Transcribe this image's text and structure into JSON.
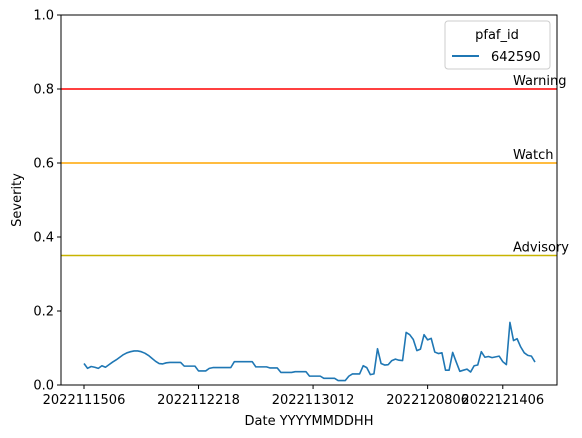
{
  "chart_data": {
    "type": "line",
    "title": "",
    "xlabel": "Date YYYYMMDDHH",
    "ylabel": "Severity",
    "ylim": [
      0,
      1.0
    ],
    "grid": false,
    "legend": {
      "title": "pfaf_id",
      "placement": "top-right",
      "entries": [
        "642590"
      ]
    },
    "x_ticks": [
      "2022111506",
      "2022112218",
      "2022113012",
      "2022120806",
      "2022121406"
    ],
    "y_ticks": [
      "0.0",
      "0.2",
      "0.4",
      "0.6",
      "0.8",
      "1.0"
    ],
    "y_tick_values": [
      0,
      0.2,
      0.4,
      0.6,
      0.8,
      1.0
    ],
    "thresholds": [
      {
        "label": "Warning",
        "value": 0.8,
        "color": "#ff0000"
      },
      {
        "label": "Watch",
        "value": 0.6,
        "color": "#ffa500"
      },
      {
        "label": "Advisory",
        "value": 0.35,
        "color": "#c8b400"
      }
    ],
    "series": [
      {
        "name": "642590",
        "color": "#1f77b4",
        "values": [
          0.058,
          0.045,
          0.05,
          0.048,
          0.045,
          0.052,
          0.048,
          0.055,
          0.062,
          0.068,
          0.075,
          0.082,
          0.087,
          0.09,
          0.092,
          0.092,
          0.09,
          0.086,
          0.08,
          0.072,
          0.064,
          0.058,
          0.057,
          0.06,
          0.061,
          0.061,
          0.061,
          0.061,
          0.051,
          0.051,
          0.051,
          0.051,
          0.038,
          0.038,
          0.038,
          0.045,
          0.047,
          0.047,
          0.047,
          0.047,
          0.047,
          0.047,
          0.063,
          0.063,
          0.063,
          0.063,
          0.063,
          0.063,
          0.049,
          0.049,
          0.049,
          0.049,
          0.046,
          0.046,
          0.046,
          0.034,
          0.034,
          0.034,
          0.034,
          0.036,
          0.036,
          0.036,
          0.036,
          0.024,
          0.024,
          0.024,
          0.024,
          0.018,
          0.018,
          0.018,
          0.018,
          0.012,
          0.012,
          0.012,
          0.024,
          0.03,
          0.03,
          0.03,
          0.052,
          0.047,
          0.028,
          0.03,
          0.098,
          0.058,
          0.054,
          0.055,
          0.066,
          0.07,
          0.067,
          0.066,
          0.142,
          0.136,
          0.123,
          0.093,
          0.097,
          0.136,
          0.122,
          0.126,
          0.089,
          0.085,
          0.087,
          0.04,
          0.04,
          0.088,
          0.062,
          0.037,
          0.04,
          0.043,
          0.035,
          0.052,
          0.054,
          0.09,
          0.075,
          0.077,
          0.074,
          0.076,
          0.078,
          0.063,
          0.055,
          0.169,
          0.12,
          0.125,
          0.103,
          0.087,
          0.08,
          0.078,
          0.062
        ]
      }
    ]
  }
}
